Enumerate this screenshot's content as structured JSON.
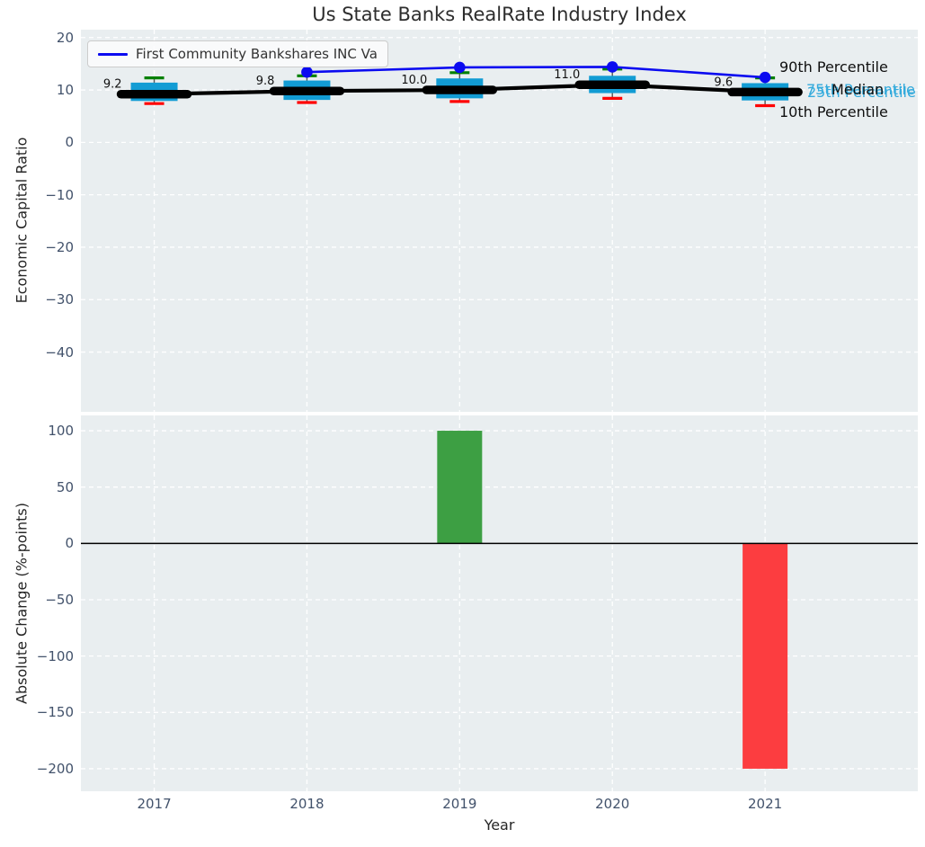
{
  "figure": {
    "title": "Us State Banks RealRate Industry Index",
    "xlabel": "Year",
    "top_ylabel": "Economic Capital Ratio",
    "bottom_ylabel": "Absolute Change (%-points)"
  },
  "legend": {
    "label": "First Community Bankshares INC Va"
  },
  "annotations": {
    "p90": "90th Percentile",
    "p75": "75th Percentile",
    "median": "Median",
    "p25": "25th Percentile",
    "p10": "10th Percentile"
  },
  "colors": {
    "plot_bg": "#e9eef0",
    "grid": "#ffffff",
    "box_fill": "#129cd4",
    "whisker": "#555555",
    "cap_top_green": "#008000",
    "cap_bottom_red": "#ff0000",
    "median_line": "#000000",
    "company_line": "#0b0bf0",
    "bar_positive": "#3d9f43",
    "bar_negative": "#fc3d40",
    "zero_line": "#000000",
    "tick_label": "#42526b",
    "annotation_cyan": "#35abdc",
    "annotation_black": "#101010"
  },
  "chart_data": [
    {
      "type": "boxplot+line",
      "title": "Us State Banks RealRate Industry Index",
      "ylabel": "Economic Capital Ratio",
      "xlabel": "Year",
      "categories": [
        "2017",
        "2018",
        "2019",
        "2020",
        "2021"
      ],
      "yticks": [
        20,
        10,
        0,
        -10,
        -20,
        -30,
        -40
      ],
      "ylim": [
        -51.4,
        21.5
      ],
      "xlim": [
        -0.48,
        5.0
      ],
      "grid": true,
      "legend_position": "upper left",
      "boxes": [
        {
          "year": "2017",
          "median": 9.2,
          "q1": 7.9,
          "q3": 11.4,
          "p10": 7.4,
          "p90": 12.3,
          "label": "9.2"
        },
        {
          "year": "2018",
          "median": 9.8,
          "q1": 8.1,
          "q3": 11.8,
          "p10": 7.6,
          "p90": 12.7,
          "label": "9.8"
        },
        {
          "year": "2019",
          "median": 10.0,
          "q1": 8.4,
          "q3": 12.2,
          "p10": 7.8,
          "p90": 13.3,
          "label": "10.0"
        },
        {
          "year": "2020",
          "median": 11.0,
          "q1": 9.4,
          "q3": 12.7,
          "p10": 8.4,
          "p90": 14.0,
          "label": "11.0"
        },
        {
          "year": "2021",
          "median": 9.6,
          "q1": 8.0,
          "q3": 11.3,
          "p10": 7.0,
          "p90": 12.3,
          "label": "9.6"
        }
      ],
      "series": [
        {
          "name": "First Community Bankshares INC Va",
          "x": [
            "2018",
            "2019",
            "2020",
            "2021"
          ],
          "values": [
            13.4,
            14.3,
            14.4,
            12.4
          ]
        }
      ]
    },
    {
      "type": "bar",
      "ylabel": "Absolute Change (%-points)",
      "xlabel": "Year",
      "categories": [
        "2017",
        "2018",
        "2019",
        "2020",
        "2021"
      ],
      "values": [
        null,
        null,
        100,
        null,
        -200
      ],
      "yticks": [
        100,
        50,
        0,
        -50,
        -100,
        -150,
        -200
      ],
      "ylim": [
        -220,
        113.6
      ],
      "zero_line": true,
      "grid": true
    }
  ]
}
